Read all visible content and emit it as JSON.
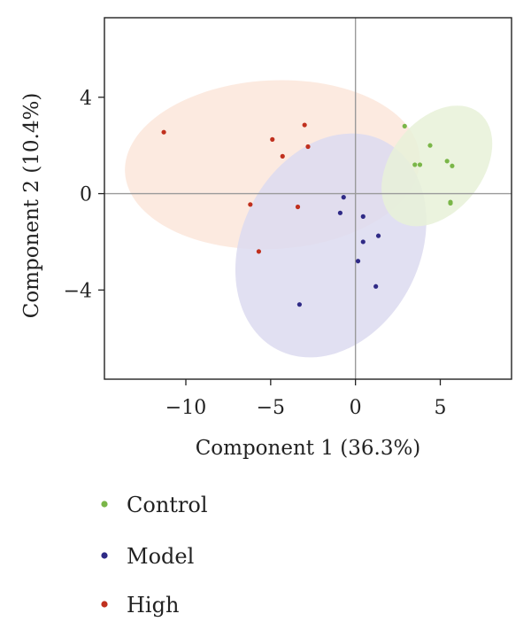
{
  "chart_data": {
    "type": "scatter",
    "xlabel": "Component 1 (36.3%)",
    "ylabel": "Component 2 (10.4%)",
    "xlim": [
      -14.8,
      9.2
    ],
    "ylim": [
      -7.7,
      7.3
    ],
    "xticks": [
      -10,
      -5,
      0,
      5
    ],
    "yticks": [
      4,
      0,
      -4
    ],
    "x_tick_labels": [
      "−10",
      "−5",
      "0",
      "5"
    ],
    "y_tick_labels": [
      "4",
      "0",
      "−4"
    ],
    "reference_lines": {
      "x": 0,
      "y": 0
    },
    "grid": false,
    "legend_position": "bottom-left",
    "series": [
      {
        "name": "Control",
        "color": "#7ab648",
        "ellipse_fill": "#e8f1d8",
        "points": [
          [
            2.9,
            2.8
          ],
          [
            4.4,
            2.0
          ],
          [
            3.5,
            1.2
          ],
          [
            3.8,
            1.2
          ],
          [
            5.4,
            1.35
          ],
          [
            5.7,
            1.15
          ],
          [
            5.6,
            -0.35
          ],
          [
            5.6,
            -0.4
          ]
        ],
        "ellipse": {
          "center": [
            4.8,
            1.15
          ],
          "semi_axes": [
            4.0,
            1.9
          ],
          "angle_deg": -51.5
        }
      },
      {
        "name": "Model",
        "color": "#2f2a86",
        "ellipse_fill": "#dcdaf0",
        "points": [
          [
            -0.7,
            -0.15
          ],
          [
            -0.9,
            -0.8
          ],
          [
            0.45,
            -0.95
          ],
          [
            0.45,
            -2.0
          ],
          [
            1.35,
            -1.75
          ],
          [
            0.15,
            -2.8
          ],
          [
            1.2,
            -3.85
          ],
          [
            -3.3,
            -4.6
          ]
        ],
        "ellipse": {
          "center": [
            -1.45,
            -2.15
          ],
          "semi_axes": [
            6.9,
            3.7
          ],
          "angle_deg": -63
        }
      },
      {
        "name": "High",
        "color": "#c0301e",
        "ellipse_fill": "#fbe6da",
        "points": [
          [
            -11.3,
            2.55
          ],
          [
            -3.0,
            2.85
          ],
          [
            -4.9,
            2.25
          ],
          [
            -2.8,
            1.95
          ],
          [
            -4.3,
            1.55
          ],
          [
            -6.2,
            -0.45
          ],
          [
            -3.4,
            -0.55
          ],
          [
            -5.7,
            -2.4
          ]
        ],
        "ellipse": {
          "center": [
            -4.9,
            1.2
          ],
          "semi_axes": [
            8.7,
            3.5
          ],
          "angle_deg": -3
        }
      }
    ]
  }
}
